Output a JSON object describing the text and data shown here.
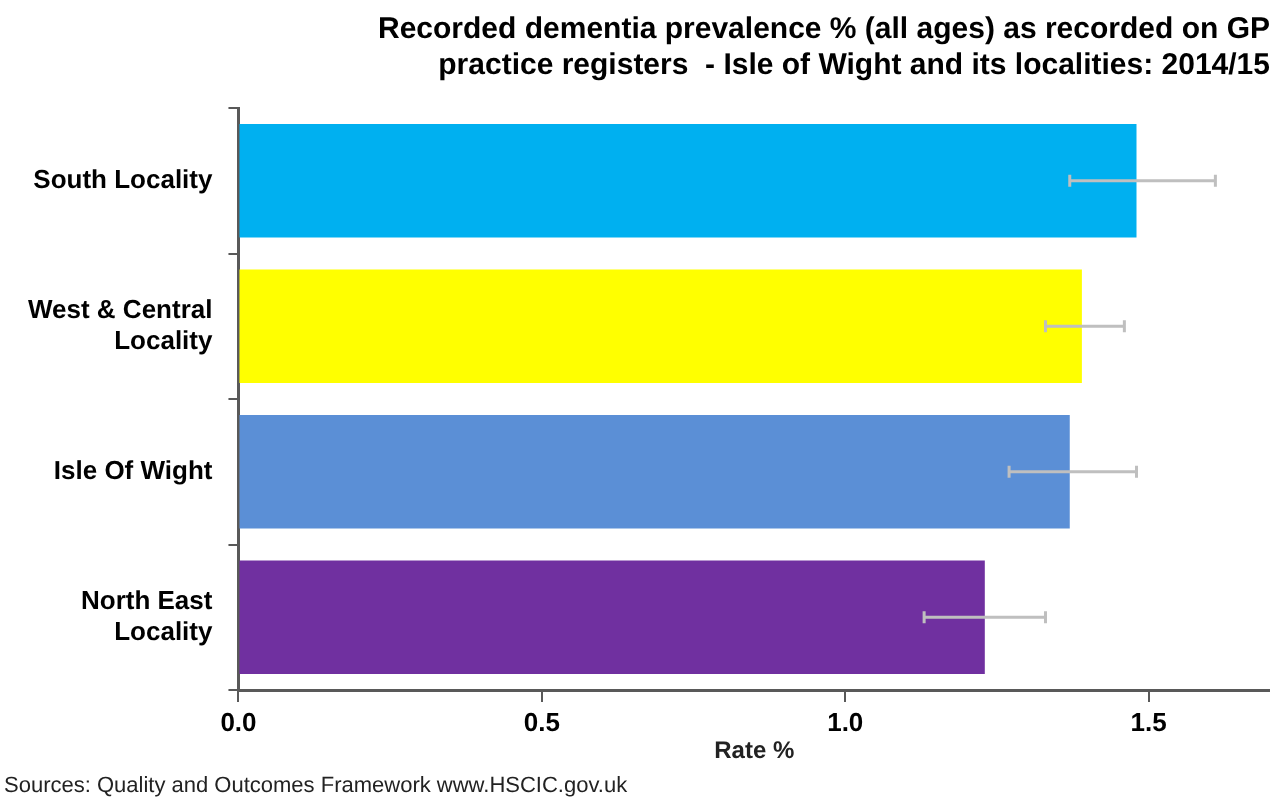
{
  "chart_data": {
    "type": "bar",
    "orientation": "horizontal",
    "title": "Recorded dementia prevalence % (all ages) as recorded on GP practice registers  - Isle of Wight and its localities: 2014/15",
    "xlabel": "Rate %",
    "categories": [
      "South Locality",
      "West & Central Locality",
      "Isle Of Wight",
      "North East Locality"
    ],
    "values": [
      1.48,
      1.39,
      1.37,
      1.23
    ],
    "colors": [
      "#00b0f0",
      "#ffff00",
      "#5b8fd6",
      "#7030a0"
    ],
    "errors": [
      [
        1.37,
        1.61
      ],
      [
        1.33,
        1.46
      ],
      [
        1.27,
        1.48
      ],
      [
        1.13,
        1.33
      ]
    ],
    "xlim": [
      0,
      1.7
    ],
    "xticks": [
      {
        "value": 0,
        "label": "0.0"
      },
      {
        "value": 0.5,
        "label": "0.5"
      },
      {
        "value": 1,
        "label": "1.0"
      },
      {
        "value": 1.5,
        "label": "1.5"
      }
    ],
    "annotations": [
      "Sources: Quality and Outcomes Framework  www.HSCIC.gov.uk"
    ]
  }
}
